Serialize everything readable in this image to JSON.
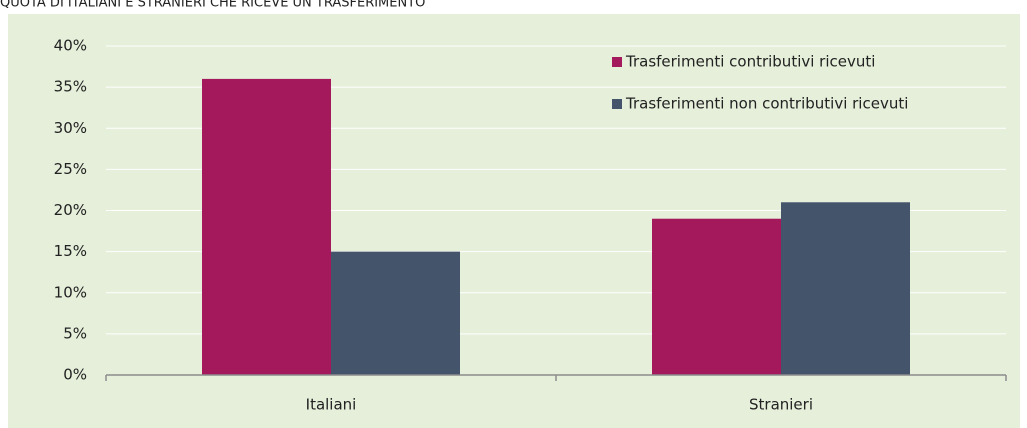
{
  "chart_data": {
    "type": "bar",
    "title": "QUOTA DI ITALIANI E STRANIERI CHE RICEVE UN TRASFERIMENTO",
    "categories": [
      "Italiani",
      "Stranieri"
    ],
    "series": [
      {
        "name": "Trasferimenti contributivi ricevuti",
        "color": "#a3195b",
        "values": [
          36,
          19
        ]
      },
      {
        "name": "Trasferimenti non contributivi ricevuti",
        "color": "#44546a",
        "values": [
          15,
          21
        ]
      }
    ],
    "ylim": [
      0,
      40
    ],
    "yticks": [
      {
        "value": 0,
        "label": "0%"
      },
      {
        "value": 5,
        "label": "5%"
      },
      {
        "value": 10,
        "label": "10%"
      },
      {
        "value": 15,
        "label": "15%"
      },
      {
        "value": 20,
        "label": "20%"
      },
      {
        "value": 25,
        "label": "25%"
      },
      {
        "value": 30,
        "label": "30%"
      },
      {
        "value": 35,
        "label": "35%"
      },
      {
        "value": 40,
        "label": "40%"
      }
    ],
    "grid": true,
    "legend": "top-right"
  }
}
